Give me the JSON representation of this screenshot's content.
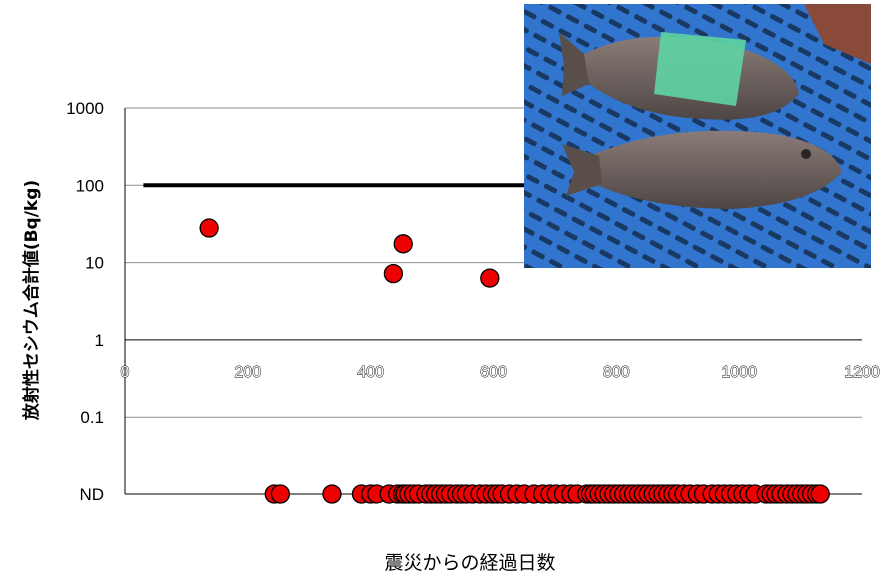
{
  "chart_data": {
    "type": "scatter",
    "title": "",
    "xlabel": "震災からの経過日数",
    "ylabel": "放射性セシウム合計値(Bq/kg)",
    "xlim": [
      0,
      1200
    ],
    "ylim_log": [
      0.1,
      1000
    ],
    "y_scale": "log",
    "x_ticks": [
      "0",
      "200",
      "400",
      "600",
      "800",
      "1000",
      "1200"
    ],
    "y_ticks": [
      "1000",
      "100",
      "10",
      "1",
      "0.1",
      "ND"
    ],
    "grid": "horizontal",
    "reference_line": {
      "y": 100,
      "x_range": [
        30,
        1140
      ]
    },
    "marker_color": "#ee0000",
    "detected_points": [
      {
        "x": 137,
        "y": 28
      },
      {
        "x": 437,
        "y": 7.2
      },
      {
        "x": 453,
        "y": 17.5
      },
      {
        "x": 594,
        "y": 6.3
      }
    ],
    "nd_points_x": [
      243,
      253,
      337,
      385,
      400,
      410,
      430,
      444,
      452,
      456,
      462,
      470,
      478,
      490,
      498,
      506,
      514,
      522,
      530,
      540,
      548,
      556,
      566,
      578,
      588,
      598,
      606,
      614,
      626,
      638,
      650,
      666,
      680,
      692,
      702,
      714,
      726,
      736,
      752,
      758,
      764,
      772,
      780,
      788,
      796,
      804,
      812,
      820,
      828,
      836,
      844,
      852,
      860,
      868,
      876,
      884,
      892,
      900,
      910,
      920,
      932,
      942,
      956,
      966,
      976,
      986,
      996,
      1006,
      1016,
      1026,
      1044,
      1052,
      1060,
      1068,
      1078,
      1086,
      1094,
      1102,
      1110,
      1118,
      1126,
      1132
    ]
  },
  "photo": {
    "icon": "flatfish-photo"
  }
}
